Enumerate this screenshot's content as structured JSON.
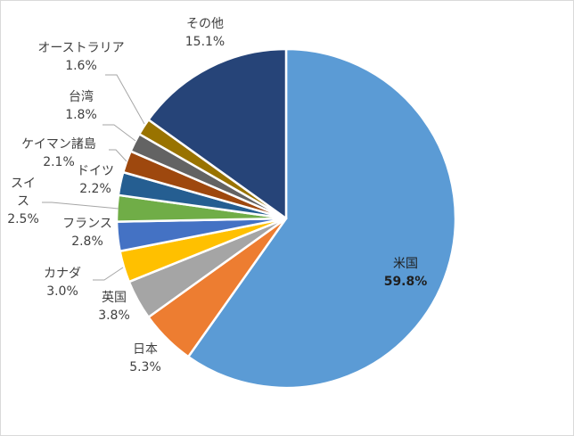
{
  "chart_data": {
    "type": "pie",
    "title": "",
    "slices": [
      {
        "label": "米国",
        "value": 59.8,
        "display": "59.8%",
        "color": "#5B9BD5"
      },
      {
        "label": "日本",
        "value": 5.3,
        "display": "5.3%",
        "color": "#ED7D31"
      },
      {
        "label": "英国",
        "value": 3.8,
        "display": "3.8%",
        "color": "#A5A5A5"
      },
      {
        "label": "カナダ",
        "value": 3.0,
        "display": "3.0%",
        "color": "#FFC000"
      },
      {
        "label": "フランス",
        "value": 2.8,
        "display": "2.8%",
        "color": "#4472C4"
      },
      {
        "label": "スイス",
        "label_lines": [
          "スイ",
          "ス"
        ],
        "value": 2.5,
        "display": "2.5%",
        "color": "#70AD47"
      },
      {
        "label": "ドイツ",
        "value": 2.2,
        "display": "2.2%",
        "color": "#255E91"
      },
      {
        "label": "ケイマン諸島",
        "value": 2.1,
        "display": "2.1%",
        "color": "#9E480E"
      },
      {
        "label": "台湾",
        "value": 1.8,
        "display": "1.8%",
        "color": "#636363"
      },
      {
        "label": "オーストラリア",
        "value": 1.6,
        "display": "1.6%",
        "color": "#997300"
      },
      {
        "label": "その他",
        "value": 15.1,
        "display": "15.1%",
        "color": "#264478"
      }
    ],
    "start_angle_deg": 0,
    "direction": "clockwise",
    "legend": "none",
    "data_labels": "category and percent"
  }
}
